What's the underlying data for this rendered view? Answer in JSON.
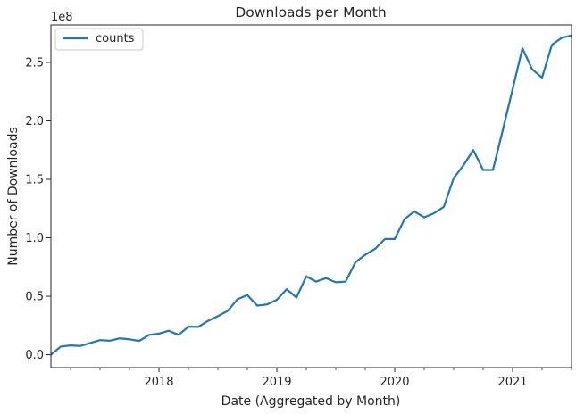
{
  "chart_data": {
    "type": "line",
    "title": "Downloads per Month",
    "xlabel": "Date (Aggregated by Month)",
    "ylabel": "Number of Downloads",
    "offset_label": "1e8",
    "y_scale": 100000000,
    "ylim": [
      -11000000,
      282000000
    ],
    "xlim": [
      "2017-02",
      "2021-07"
    ],
    "yticks": [
      0,
      50000000,
      100000000,
      150000000,
      200000000,
      250000000
    ],
    "ytick_labels": [
      "0.0",
      "0.5",
      "1.0",
      "1.5",
      "2.0",
      "2.5"
    ],
    "xticks": [
      "2018-01",
      "2019-01",
      "2020-01",
      "2021-01"
    ],
    "xtick_labels": [
      "2018",
      "2019",
      "2020",
      "2021"
    ],
    "grid": false,
    "legend_position": "top-left",
    "series": [
      {
        "name": "counts",
        "color": "#1f77b4",
        "x": [
          "2017-02",
          "2017-03",
          "2017-04",
          "2017-05",
          "2017-06",
          "2017-07",
          "2017-08",
          "2017-09",
          "2017-10",
          "2017-11",
          "2017-12",
          "2018-01",
          "2018-02",
          "2018-03",
          "2018-04",
          "2018-05",
          "2018-06",
          "2018-07",
          "2018-08",
          "2018-09",
          "2018-10",
          "2018-11",
          "2018-12",
          "2019-01",
          "2019-02",
          "2019-03",
          "2019-04",
          "2019-05",
          "2019-06",
          "2019-07",
          "2019-08",
          "2019-09",
          "2019-10",
          "2019-11",
          "2019-12",
          "2020-01",
          "2020-02",
          "2020-03",
          "2020-04",
          "2020-05",
          "2020-06",
          "2020-07",
          "2020-08",
          "2020-09",
          "2020-10",
          "2020-11",
          "2020-12",
          "2021-01",
          "2021-02",
          "2021-03",
          "2021-04",
          "2021-05",
          "2021-06",
          "2021-07"
        ],
        "values": [
          0,
          7000000,
          8000000,
          7500000,
          10000000,
          12500000,
          12000000,
          14000000,
          13200000,
          11800000,
          17000000,
          18000000,
          20500000,
          17000000,
          24000000,
          23800000,
          29000000,
          33000000,
          37500000,
          47500000,
          51000000,
          42000000,
          43000000,
          47000000,
          56000000,
          49000000,
          67000000,
          62500000,
          65500000,
          62000000,
          62500000,
          79000000,
          85500000,
          90500000,
          99000000,
          99000000,
          116000000,
          122500000,
          117500000,
          121000000,
          126500000,
          151000000,
          162000000,
          175000000,
          158000000,
          158000000,
          192000000,
          227000000,
          262000000,
          244000000,
          237000000,
          265000000,
          271000000,
          273000000
        ]
      }
    ]
  }
}
